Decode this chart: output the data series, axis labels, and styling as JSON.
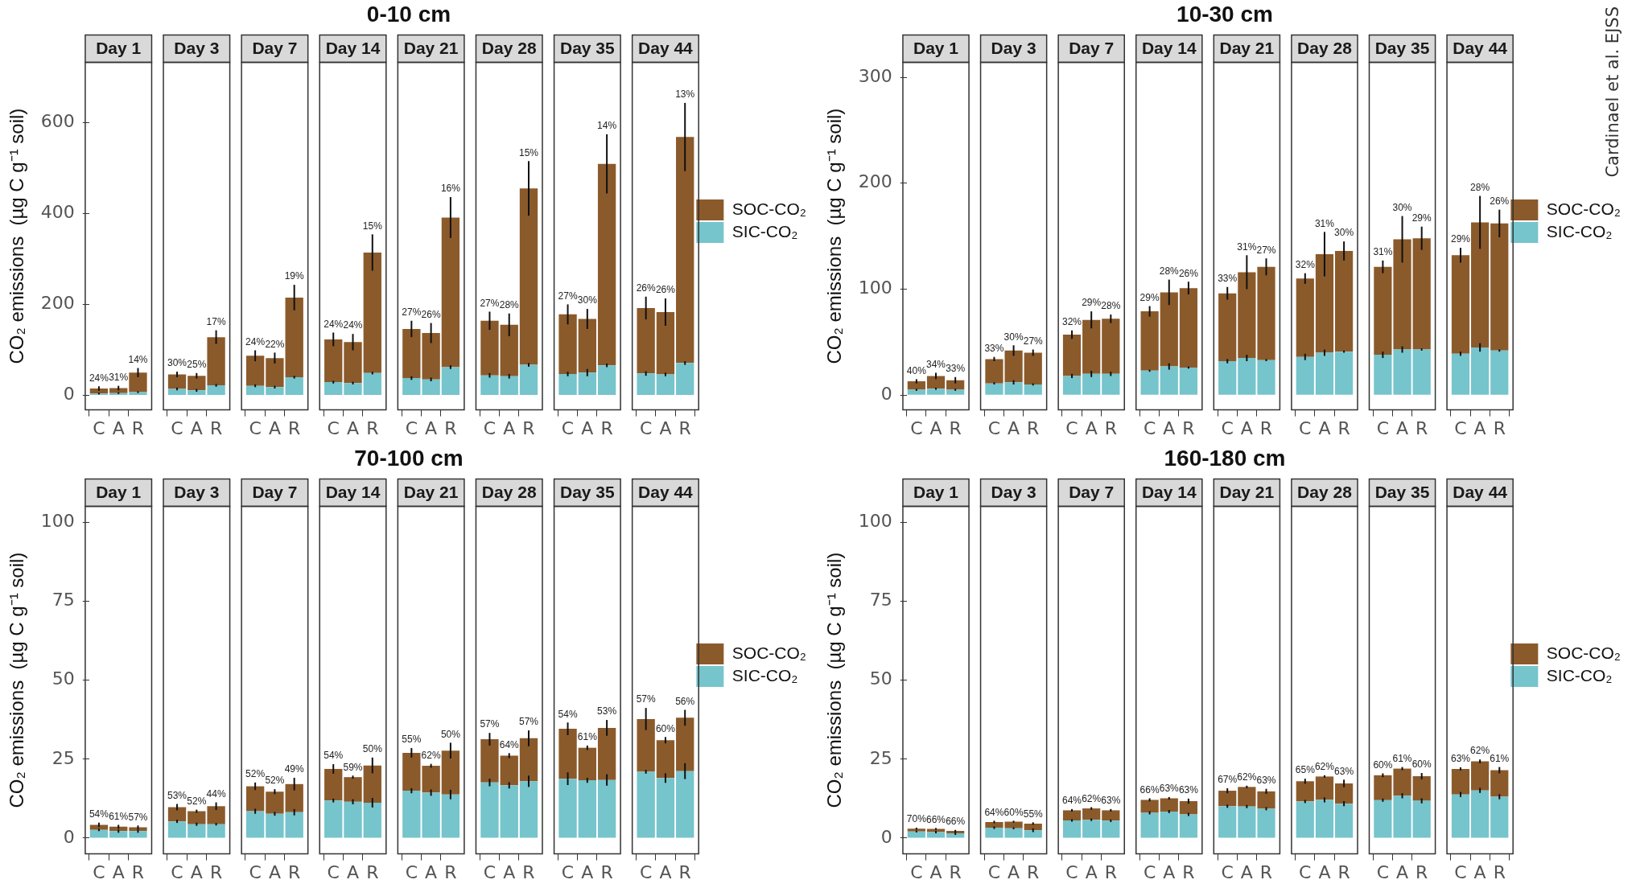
{
  "chart_data": [
    {
      "type": "bar",
      "stacked": true,
      "title": "0-10 cm",
      "ylabel": "CO₂ emissions  (µg C g⁻¹ soil)",
      "legend": "right",
      "grid": false,
      "categories": [
        "C",
        "A",
        "R",
        "C",
        "A",
        "R",
        "C",
        "A",
        "R",
        "C",
        "A",
        "R",
        "C",
        "A",
        "R",
        "C",
        "A",
        "R",
        "C",
        "A",
        "R",
        "C",
        "A",
        "R"
      ],
      "ylim": [
        -32,
        732
      ],
      "yticks": [
        0,
        200,
        400,
        600
      ],
      "annotations": [
        "Day 1",
        "Day 3",
        "Day 7",
        "Day 14",
        "Day 21",
        "Day 28",
        "Day 35",
        "Day 44",
        "24%",
        "31%",
        "14%",
        "30%",
        "25%",
        "17%",
        "24%",
        "22%",
        "19%",
        "24%",
        "24%",
        "15%",
        "27%",
        "26%",
        "16%",
        "27%",
        "28%",
        "15%",
        "27%",
        "30%",
        "14%",
        "26%",
        "26%",
        "13%"
      ],
      "series": [
        {
          "name": "SIC-CO₂",
          "color": "#76c4cc",
          "values": [
            4,
            5,
            7,
            14,
            11,
            22,
            21,
            18,
            40,
            29,
            27,
            49,
            38,
            35,
            62,
            44,
            42,
            67,
            47,
            50,
            66,
            48,
            46,
            71
          ],
          "errors": [
            2,
            2,
            2,
            3,
            3,
            3,
            3,
            3,
            3,
            3,
            3,
            3,
            4,
            4,
            4,
            5,
            5,
            4,
            5,
            8,
            4,
            5,
            4,
            4
          ]
        },
        {
          "name": "SOC-CO₂",
          "color": "#8b5a2b",
          "values": [
            11,
            11,
            43,
            32,
            32,
            106,
            66,
            64,
            175,
            94,
            90,
            265,
            108,
            102,
            329,
            120,
            113,
            388,
            131,
            118,
            443,
            144,
            137,
            497
          ],
          "errors": [
            5,
            5,
            10,
            6,
            6,
            15,
            12,
            12,
            28,
            15,
            18,
            40,
            18,
            22,
            45,
            20,
            25,
            60,
            22,
            22,
            65,
            25,
            30,
            75
          ]
        }
      ]
    },
    {
      "type": "bar",
      "stacked": true,
      "title": "10-30 cm",
      "ylabel": "CO₂ emissions  (µg C g⁻¹ soil)",
      "legend": "right",
      "grid": false,
      "categories": [
        "C",
        "A",
        "R",
        "C",
        "A",
        "R",
        "C",
        "A",
        "R",
        "C",
        "A",
        "R",
        "C",
        "A",
        "R",
        "C",
        "A",
        "R",
        "C",
        "A",
        "R",
        "C",
        "A",
        "R"
      ],
      "ylim": [
        -14,
        314
      ],
      "yticks": [
        0,
        100,
        200,
        300
      ],
      "annotations": [
        "Day 1",
        "Day 3",
        "Day 7",
        "Day 14",
        "Day 21",
        "Day 28",
        "Day 35",
        "Day 44",
        "40%",
        "34%",
        "33%",
        "33%",
        "30%",
        "27%",
        "32%",
        "29%",
        "28%",
        "29%",
        "28%",
        "26%",
        "33%",
        "31%",
        "27%",
        "32%",
        "31%",
        "30%",
        "31%",
        "30%",
        "29%",
        "29%",
        "28%",
        "26%",
        "Cardinael et al. EJSS"
      ],
      "series": [
        {
          "name": "SIC-CO₂",
          "color": "#76c4cc",
          "values": [
            5,
            6,
            5,
            11,
            12,
            10,
            18,
            20,
            20,
            23,
            27,
            26,
            32,
            35,
            33,
            36,
            40,
            41,
            38,
            43,
            43,
            39,
            45,
            42
          ],
          "errors": [
            1,
            1,
            1,
            1,
            2,
            1,
            2,
            3,
            2,
            1,
            3,
            1,
            2,
            3,
            1,
            3,
            3,
            1,
            3,
            3,
            1,
            2,
            4,
            1
          ]
        },
        {
          "name": "SOC-CO₂",
          "color": "#8b5a2b",
          "values": [
            8,
            12,
            9,
            23,
            30,
            30,
            39,
            51,
            52,
            56,
            70,
            75,
            64,
            81,
            88,
            74,
            93,
            95,
            83,
            104,
            105,
            93,
            118,
            120
          ],
          "errors": [
            2,
            3,
            3,
            2,
            5,
            3,
            4,
            8,
            4,
            5,
            12,
            6,
            6,
            16,
            8,
            5,
            21,
            9,
            6,
            22,
            11,
            7,
            25,
            13
          ]
        }
      ]
    },
    {
      "type": "bar",
      "stacked": true,
      "title": "70-100 cm",
      "ylabel": "CO₂ emissions  (µg C g⁻¹ soil)",
      "legend": "right",
      "grid": false,
      "categories": [
        "C",
        "A",
        "R",
        "C",
        "A",
        "R",
        "C",
        "A",
        "R",
        "C",
        "A",
        "R",
        "C",
        "A",
        "R",
        "C",
        "A",
        "R",
        "C",
        "A",
        "R",
        "C",
        "A",
        "R"
      ],
      "ylim": [
        -5,
        105
      ],
      "yticks": [
        0,
        25,
        50,
        75,
        100
      ],
      "annotations": [
        "Day 1",
        "Day 3",
        "Day 7",
        "Day 14",
        "Day 21",
        "Day 28",
        "Day 35",
        "Day 44",
        "54%",
        "61%",
        "57%",
        "53%",
        "52%",
        "44%",
        "52%",
        "52%",
        "49%",
        "54%",
        "59%",
        "50%",
        "55%",
        "62%",
        "50%",
        "57%",
        "64%",
        "57%",
        "54%",
        "61%",
        "53%",
        "57%",
        "60%",
        "56%"
      ],
      "series": [
        {
          "name": "SIC-CO₂",
          "color": "#76c4cc",
          "values": [
            2.6,
            2.2,
            2.2,
            5.3,
            4.4,
            4.4,
            8.5,
            7.7,
            8.2,
            11.9,
            11.5,
            11.2,
            15.0,
            14.4,
            13.8,
            17.6,
            16.7,
            18.0,
            18.8,
            18.3,
            18.4,
            21.0,
            19.0,
            21.2
          ],
          "errors": [
            0.4,
            0.5,
            0.5,
            0.5,
            0.5,
            0.4,
            0.8,
            0.6,
            1.0,
            0.6,
            0.8,
            1.5,
            0.8,
            1.0,
            1.5,
            1.2,
            1.0,
            1.8,
            2.0,
            0.8,
            1.8,
            0.6,
            1.5,
            2.5
          ]
        },
        {
          "name": "SOC-CO₂",
          "color": "#8b5a2b",
          "values": [
            1.6,
            1.4,
            1.2,
            4.5,
            4.1,
            5.7,
            7.9,
            7.0,
            8.9,
            10.0,
            7.8,
            11.8,
            12.0,
            8.5,
            13.9,
            13.7,
            9.4,
            13.6,
            15.8,
            10.3,
            16.5,
            16.7,
            12.0,
            16.9
          ],
          "errors": [
            0.7,
            0.6,
            0.6,
            1.0,
            0.5,
            1.2,
            1.2,
            0.8,
            2.0,
            1.5,
            0.5,
            2.5,
            1.5,
            0.6,
            2.5,
            2.0,
            0.8,
            2.5,
            2.0,
            0.7,
            2.5,
            3.5,
            1.0,
            2.5
          ]
        }
      ]
    },
    {
      "type": "bar",
      "stacked": true,
      "title": "160-180 cm",
      "ylabel": "CO₂ emissions  (µg C g⁻¹ soil)",
      "legend": "right",
      "grid": false,
      "categories": [
        "C",
        "A",
        "R",
        "C",
        "A",
        "R",
        "C",
        "A",
        "R",
        "C",
        "A",
        "R",
        "C",
        "A",
        "R",
        "C",
        "A",
        "R",
        "C",
        "A",
        "R",
        "C",
        "A",
        "R"
      ],
      "ylim": [
        -5,
        105
      ],
      "yticks": [
        0,
        25,
        50,
        75,
        100
      ],
      "annotations": [
        "Day 1",
        "Day 3",
        "Day 7",
        "Day 14",
        "Day 21",
        "Day 28",
        "Day 35",
        "Day 44",
        "70%",
        "66%",
        "66%",
        "64%",
        "60%",
        "55%",
        "64%",
        "62%",
        "63%",
        "66%",
        "63%",
        "63%",
        "67%",
        "62%",
        "63%",
        "65%",
        "62%",
        "63%",
        "60%",
        "61%",
        "60%",
        "63%",
        "62%",
        "61%"
      ],
      "series": [
        {
          "name": "SIC-CO₂",
          "color": "#76c4cc",
          "values": [
            2.1,
            1.9,
            1.5,
            3.3,
            3.1,
            2.5,
            5.6,
            5.8,
            5.5,
            8.0,
            8.4,
            7.5,
            10.1,
            10.0,
            9.3,
            11.6,
            12.1,
            10.9,
            12.0,
            13.4,
            11.8,
            13.8,
            15.1,
            13.1
          ],
          "errors": [
            0.3,
            0.4,
            0.5,
            0.4,
            0.3,
            0.6,
            0.4,
            0.4,
            0.4,
            0.5,
            0.5,
            0.5,
            0.5,
            0.5,
            0.5,
            0.5,
            0.8,
            0.8,
            0.5,
            0.8,
            0.8,
            0.8,
            0.8,
            0.8
          ]
        },
        {
          "name": "SOC-CO₂",
          "color": "#8b5a2b",
          "values": [
            0.9,
            1.0,
            0.8,
            1.8,
            2.1,
            2.1,
            3.2,
            3.6,
            3.3,
            4.1,
            4.2,
            4.2,
            4.9,
            6.2,
            5.5,
            6.4,
            7.4,
            6.4,
            7.9,
            8.6,
            7.8,
            8.1,
            9.2,
            8.4
          ],
          "errors": [
            0.3,
            0.3,
            0.3,
            0.4,
            0.3,
            0.4,
            0.4,
            0.4,
            0.4,
            0.5,
            0.4,
            0.8,
            0.8,
            0.4,
            0.8,
            0.8,
            0.4,
            1.2,
            0.6,
            0.5,
            1.0,
            0.5,
            0.6,
            1.0
          ]
        }
      ]
    }
  ]
}
